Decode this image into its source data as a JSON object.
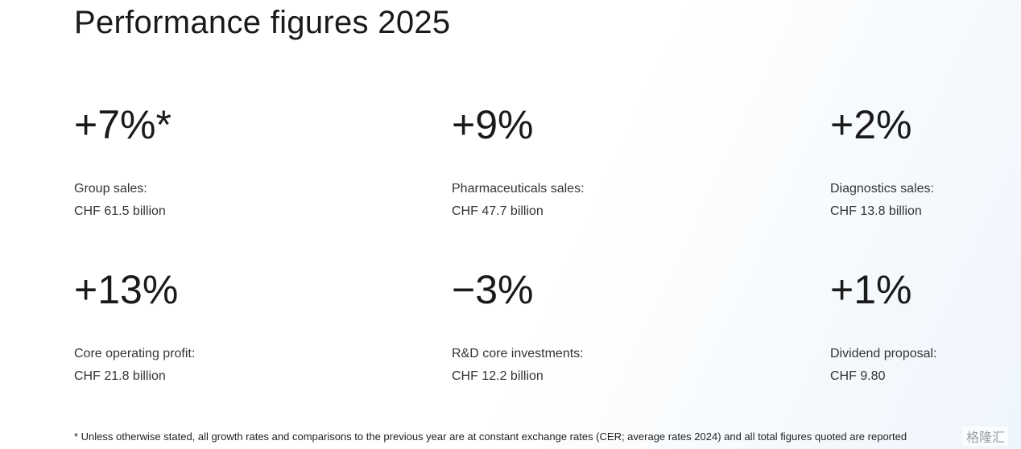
{
  "header": {
    "title": "Performance figures 2025"
  },
  "figures": [
    {
      "value": "+7%*",
      "label": "Group sales:",
      "amount": "CHF 61.5 billion"
    },
    {
      "value": "+9%",
      "label": "Pharmaceuticals sales:",
      "amount": "CHF 47.7 billion"
    },
    {
      "value": "+2%",
      "label": "Diagnostics sales:",
      "amount": "CHF 13.8 billion"
    },
    {
      "value": "+13%",
      "label": "Core operating profit:",
      "amount": "CHF 21.8 billion"
    },
    {
      "value": "−3%",
      "label": "R&D core investments:",
      "amount": "CHF 12.2 billion"
    },
    {
      "value": "+1%",
      "label": "Dividend proposal:",
      "amount": "CHF 9.80"
    }
  ],
  "footnote": "* Unless otherwise stated, all growth rates and comparisons to the previous year are at constant exchange rates (CER; average rates 2024) and all total figures quoted are reported",
  "watermark": "格隆汇"
}
